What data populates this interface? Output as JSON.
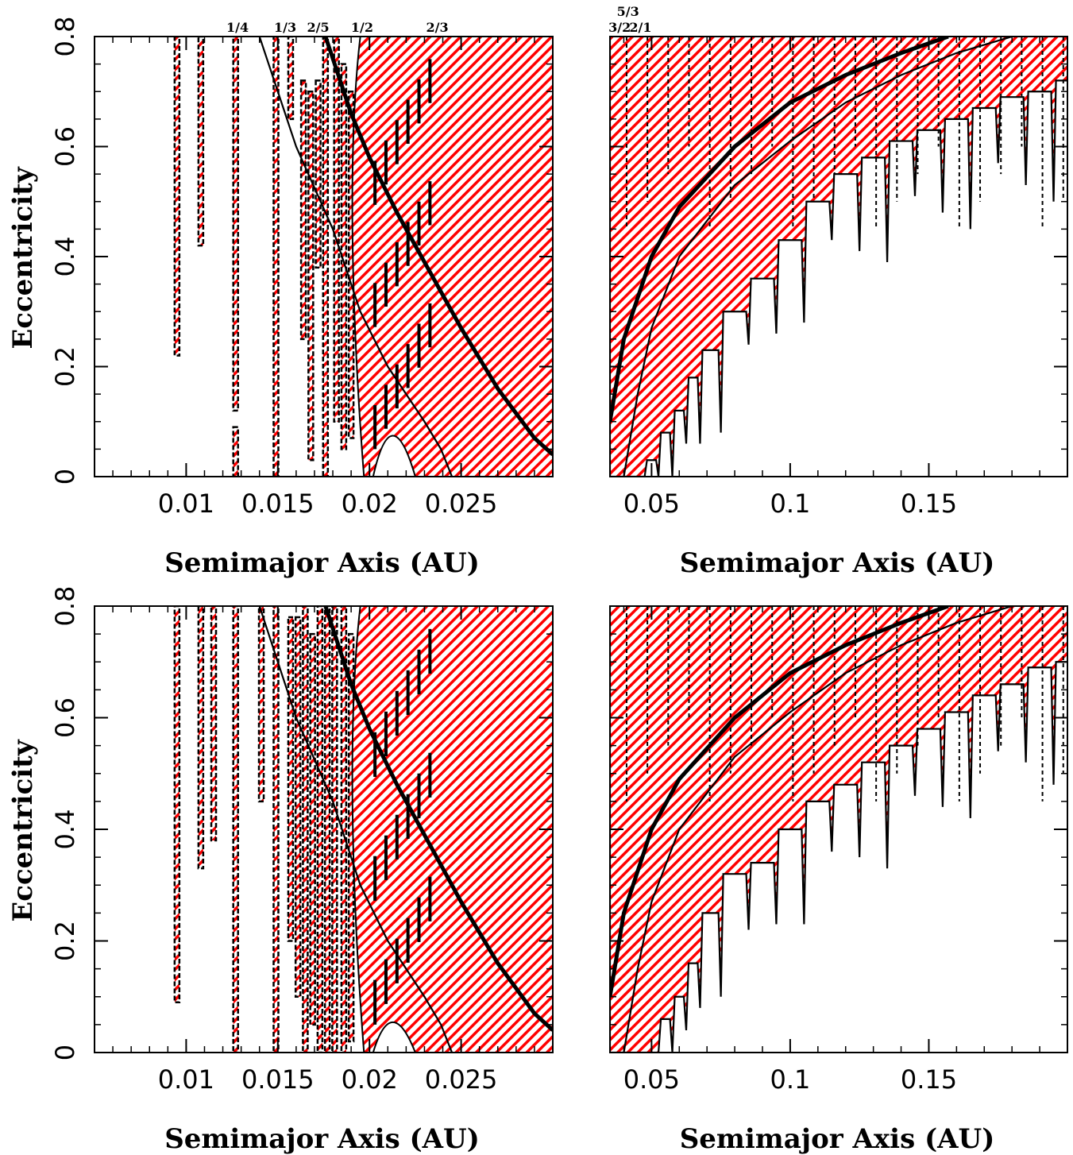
{
  "figure": {
    "colors": {
      "hatch": "#ff0000",
      "outline": "#000000",
      "background": "#ffffff"
    }
  },
  "chart_data": [
    {
      "type": "area",
      "panel": "top-left",
      "xlabel": "Semimajor Axis (AU)",
      "ylabel": "Eccentricity",
      "xlim": [
        0.005,
        0.03
      ],
      "ylim": [
        0,
        0.8
      ],
      "xticks": [
        0.01,
        0.015,
        0.02,
        0.025
      ],
      "xtick_labels": [
        "0.01",
        "0.015",
        "0.02",
        "0.025"
      ],
      "yticks": [
        0,
        0.2,
        0.4,
        0.6,
        0.8
      ],
      "ytick_labels": [
        "0",
        "0.2",
        "0.4",
        "0.6",
        "0.8"
      ],
      "resonance_labels": [
        {
          "text": "1/4",
          "x": 0.0128
        },
        {
          "text": "1/3",
          "x": 0.0154
        },
        {
          "text": "2/5",
          "x": 0.0172
        },
        {
          "text": "1/2",
          "x": 0.0196
        },
        {
          "text": "2/3",
          "x": 0.0237
        }
      ],
      "unstable_regions": [
        {
          "x": 0.0095,
          "e": [
            0.22,
            0.8
          ]
        },
        {
          "x": 0.0108,
          "e": [
            0.42,
            0.8
          ]
        },
        {
          "x": 0.0127,
          "e": [
            0.12,
            0.8
          ]
        },
        {
          "x": 0.0127,
          "e": [
            0.0,
            0.09
          ]
        },
        {
          "x": 0.0149,
          "e": [
            0.0,
            0.8
          ]
        },
        {
          "x": 0.0157,
          "e": [
            0.65,
            0.8
          ]
        },
        {
          "x": 0.0164,
          "e": [
            0.25,
            0.72
          ]
        },
        {
          "x": 0.0168,
          "e": [
            0.03,
            0.7
          ]
        },
        {
          "x": 0.0172,
          "e": [
            0.38,
            0.72
          ]
        },
        {
          "x": 0.0176,
          "e": [
            0.0,
            0.8
          ]
        },
        {
          "x": 0.0182,
          "e": [
            0.1,
            0.8
          ]
        },
        {
          "x": 0.0186,
          "e": [
            0.05,
            0.75
          ]
        },
        {
          "x": 0.019,
          "e": [
            0.07,
            0.7
          ]
        }
      ],
      "bulk_region": {
        "x_from": 0.0195,
        "x_to": 0.03,
        "e": [
          0.0,
          0.8
        ],
        "dip_e_min": 0.12
      },
      "curves": [
        {
          "name": "inner",
          "points": [
            [
              0.014,
              0.8
            ],
            [
              0.016,
              0.6
            ],
            [
              0.018,
              0.45
            ],
            [
              0.0195,
              0.3
            ],
            [
              0.021,
              0.2
            ],
            [
              0.022,
              0.15
            ],
            [
              0.023,
              0.1
            ],
            [
              0.0239,
              0.05
            ],
            [
              0.0245,
              0.0
            ]
          ]
        },
        {
          "name": "outer",
          "points": [
            [
              0.0176,
              0.8
            ],
            [
              0.019,
              0.66
            ],
            [
              0.02,
              0.58
            ],
            [
              0.0215,
              0.48
            ],
            [
              0.023,
              0.39
            ],
            [
              0.025,
              0.27
            ],
            [
              0.027,
              0.16
            ],
            [
              0.029,
              0.07
            ],
            [
              0.03,
              0.04
            ]
          ]
        }
      ]
    },
    {
      "type": "area",
      "panel": "top-right",
      "xlabel": "Semimajor Axis (AU)",
      "ylabel": "",
      "xlim": [
        0.035,
        0.2
      ],
      "ylim": [
        0,
        0.8
      ],
      "xticks": [
        0.05,
        0.1,
        0.15
      ],
      "xtick_labels": [
        "0.05",
        "0.1",
        "0.15"
      ],
      "yticks": [
        0,
        0.2,
        0.4,
        0.6,
        0.8
      ],
      "ytick_labels": [
        "",
        "",
        "",
        "",
        ""
      ],
      "resonance_labels": [
        {
          "text": "5/3",
          "x": 0.0415,
          "row": "upper"
        },
        {
          "text": "3/2",
          "x": 0.0385,
          "row": "lower"
        },
        {
          "text": "2/1",
          "x": 0.046,
          "row": "lower"
        }
      ],
      "stability_boundary": {
        "a": [
          0.035,
          0.04,
          0.045,
          0.05,
          0.055,
          0.06,
          0.065,
          0.07,
          0.08,
          0.09,
          0.1,
          0.11,
          0.12,
          0.13,
          0.14,
          0.15,
          0.16,
          0.17,
          0.18,
          0.19,
          0.2
        ],
        "e": [
          0.0,
          0.0,
          0.0,
          0.03,
          0.08,
          0.12,
          0.18,
          0.23,
          0.3,
          0.36,
          0.43,
          0.5,
          0.55,
          0.58,
          0.61,
          0.63,
          0.65,
          0.67,
          0.69,
          0.7,
          0.72
        ]
      },
      "curves": [
        {
          "name": "thick",
          "points": [
            [
              0.035,
              0.1
            ],
            [
              0.04,
              0.25
            ],
            [
              0.05,
              0.4
            ],
            [
              0.06,
              0.49
            ],
            [
              0.08,
              0.6
            ],
            [
              0.1,
              0.68
            ],
            [
              0.12,
              0.73
            ],
            [
              0.14,
              0.77
            ],
            [
              0.157,
              0.8
            ]
          ]
        },
        {
          "name": "thin",
          "points": [
            [
              0.04,
              0.0
            ],
            [
              0.045,
              0.15
            ],
            [
              0.05,
              0.27
            ],
            [
              0.06,
              0.4
            ],
            [
              0.08,
              0.53
            ],
            [
              0.1,
              0.61
            ],
            [
              0.12,
              0.68
            ],
            [
              0.14,
              0.73
            ],
            [
              0.16,
              0.77
            ],
            [
              0.18,
              0.8
            ]
          ]
        }
      ]
    },
    {
      "type": "area",
      "panel": "bottom-left",
      "xlabel": "Semimajor Axis (AU)",
      "ylabel": "Eccentricity",
      "xlim": [
        0.005,
        0.03
      ],
      "ylim": [
        0,
        0.8
      ],
      "xticks": [
        0.01,
        0.015,
        0.02,
        0.025
      ],
      "xtick_labels": [
        "0.01",
        "0.015",
        "0.02",
        "0.025"
      ],
      "yticks": [
        0,
        0.2,
        0.4,
        0.6,
        0.8
      ],
      "ytick_labels": [
        "0",
        "0.2",
        "0.4",
        "0.6",
        "0.8"
      ],
      "resonance_labels": [],
      "unstable_regions": [
        {
          "x": 0.0095,
          "e": [
            0.09,
            0.8
          ]
        },
        {
          "x": 0.0108,
          "e": [
            0.33,
            0.8
          ]
        },
        {
          "x": 0.0115,
          "e": [
            0.38,
            0.8
          ]
        },
        {
          "x": 0.0127,
          "e": [
            0.0,
            0.8
          ]
        },
        {
          "x": 0.0141,
          "e": [
            0.45,
            0.8
          ]
        },
        {
          "x": 0.0149,
          "e": [
            0.0,
            0.8
          ]
        },
        {
          "x": 0.0157,
          "e": [
            0.2,
            0.78
          ]
        },
        {
          "x": 0.0161,
          "e": [
            0.1,
            0.78
          ]
        },
        {
          "x": 0.0165,
          "e": [
            0.0,
            0.8
          ]
        },
        {
          "x": 0.0169,
          "e": [
            0.05,
            0.75
          ]
        },
        {
          "x": 0.0173,
          "e": [
            0.0,
            0.8
          ]
        },
        {
          "x": 0.0177,
          "e": [
            0.0,
            0.8
          ]
        },
        {
          "x": 0.0181,
          "e": [
            0.0,
            0.8
          ]
        },
        {
          "x": 0.0186,
          "e": [
            0.0,
            0.8
          ]
        },
        {
          "x": 0.019,
          "e": [
            0.02,
            0.75
          ]
        }
      ],
      "bulk_region": {
        "x_from": 0.0195,
        "x_to": 0.03,
        "e": [
          0.0,
          0.8
        ],
        "dip_e_min": 0.08
      },
      "curves": [
        {
          "name": "inner",
          "points": [
            [
              0.014,
              0.8
            ],
            [
              0.016,
              0.6
            ],
            [
              0.018,
              0.45
            ],
            [
              0.0195,
              0.3
            ],
            [
              0.021,
              0.2
            ],
            [
              0.022,
              0.15
            ],
            [
              0.023,
              0.1
            ],
            [
              0.0239,
              0.05
            ],
            [
              0.0245,
              0.0
            ]
          ]
        },
        {
          "name": "outer",
          "points": [
            [
              0.0176,
              0.8
            ],
            [
              0.019,
              0.66
            ],
            [
              0.02,
              0.58
            ],
            [
              0.0215,
              0.48
            ],
            [
              0.023,
              0.39
            ],
            [
              0.025,
              0.27
            ],
            [
              0.027,
              0.16
            ],
            [
              0.029,
              0.07
            ],
            [
              0.03,
              0.04
            ]
          ]
        }
      ]
    },
    {
      "type": "area",
      "panel": "bottom-right",
      "xlabel": "Semimajor Axis (AU)",
      "ylabel": "",
      "xlim": [
        0.035,
        0.2
      ],
      "ylim": [
        0,
        0.8
      ],
      "xticks": [
        0.05,
        0.1,
        0.15
      ],
      "xtick_labels": [
        "0.05",
        "0.1",
        "0.15"
      ],
      "yticks": [
        0,
        0.2,
        0.4,
        0.6,
        0.8
      ],
      "ytick_labels": [
        "",
        "",
        "",
        "",
        ""
      ],
      "resonance_labels": [],
      "stability_boundary": {
        "a": [
          0.035,
          0.04,
          0.045,
          0.05,
          0.055,
          0.06,
          0.065,
          0.07,
          0.08,
          0.09,
          0.1,
          0.11,
          0.12,
          0.13,
          0.14,
          0.15,
          0.16,
          0.17,
          0.18,
          0.19,
          0.2
        ],
        "e": [
          0.0,
          0.0,
          0.0,
          0.0,
          0.06,
          0.1,
          0.16,
          0.25,
          0.32,
          0.34,
          0.4,
          0.45,
          0.48,
          0.52,
          0.55,
          0.58,
          0.61,
          0.64,
          0.66,
          0.69,
          0.7
        ]
      },
      "curves": [
        {
          "name": "thick",
          "points": [
            [
              0.035,
              0.1
            ],
            [
              0.04,
              0.25
            ],
            [
              0.05,
              0.4
            ],
            [
              0.06,
              0.49
            ],
            [
              0.08,
              0.6
            ],
            [
              0.1,
              0.68
            ],
            [
              0.12,
              0.73
            ],
            [
              0.14,
              0.77
            ],
            [
              0.157,
              0.8
            ]
          ]
        },
        {
          "name": "thin",
          "points": [
            [
              0.04,
              0.0
            ],
            [
              0.045,
              0.15
            ],
            [
              0.05,
              0.27
            ],
            [
              0.06,
              0.4
            ],
            [
              0.08,
              0.53
            ],
            [
              0.1,
              0.61
            ],
            [
              0.12,
              0.68
            ],
            [
              0.14,
              0.73
            ],
            [
              0.16,
              0.77
            ],
            [
              0.18,
              0.8
            ]
          ]
        }
      ]
    }
  ]
}
